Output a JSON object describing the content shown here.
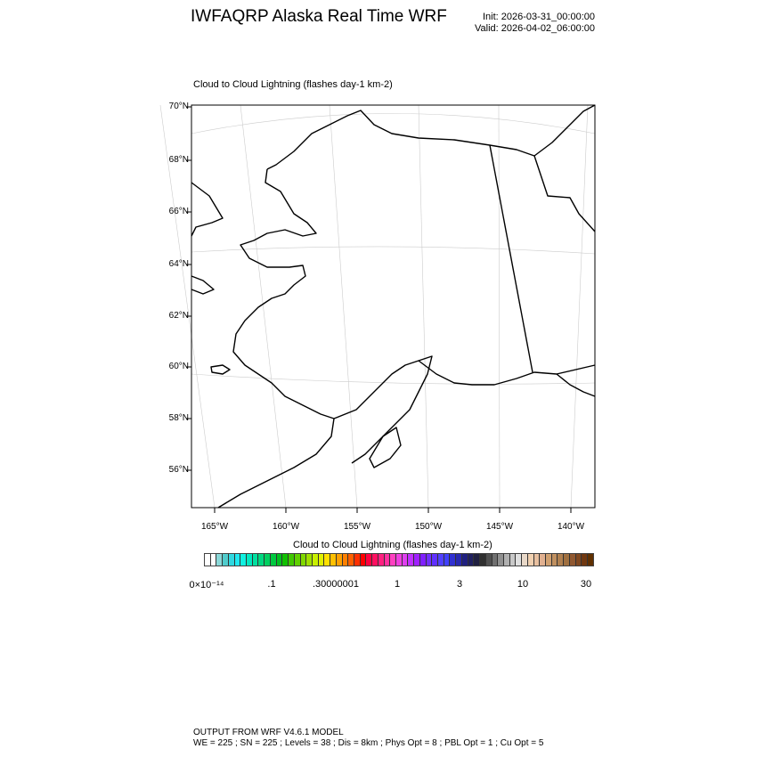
{
  "header": {
    "title": "IWFAQRP Alaska Real Time WRF",
    "init": "Init: 2026-03-31_00:00:00",
    "valid": "Valid: 2026-04-02_06:00:00"
  },
  "map": {
    "subtitle": "Cloud to Cloud Lightning   (flashes day-1 km-2)",
    "lat_labels": [
      "70°N",
      "68°N",
      "66°N",
      "64°N",
      "62°N",
      "60°N",
      "58°N",
      "56°N"
    ],
    "lon_labels": [
      "165°W",
      "160°W",
      "155°W",
      "150°W",
      "145°W",
      "140°W"
    ],
    "coast_color": "#000000",
    "grid_color": "#cccccc"
  },
  "colorbar": {
    "title": "Cloud to Cloud Lightning  (flashes day-1 km-2)",
    "labels": [
      "0×10⁻¹⁴",
      ".1",
      ".30000001",
      "1",
      "3",
      "10",
      "30"
    ],
    "colors": [
      "#ffffff",
      "#ffffff",
      "#8ad8d8",
      "#50cccc",
      "#30d8e0",
      "#20e8f0",
      "#10f0e0",
      "#00e8c0",
      "#00e0a0",
      "#00d880",
      "#00d060",
      "#00c840",
      "#00c020",
      "#10c000",
      "#40c800",
      "#60d000",
      "#80d800",
      "#a0e000",
      "#c8f000",
      "#e0f000",
      "#ffe000",
      "#ffc000",
      "#ffa000",
      "#ff8000",
      "#ff6000",
      "#ff3000",
      "#ff0000",
      "#ff0040",
      "#ff1060",
      "#ff2080",
      "#ff30a0",
      "#ff40c0",
      "#f040e0",
      "#e040f0",
      "#c030ff",
      "#a020ff",
      "#8020ff",
      "#7030ff",
      "#6030ff",
      "#5040ff",
      "#4040ff",
      "#3030d0",
      "#2828b0",
      "#202080",
      "#202060",
      "#202040",
      "#303030",
      "#505050",
      "#707070",
      "#909090",
      "#b0b0b0",
      "#c8c8c8",
      "#e0e0e0",
      "#e8d8c8",
      "#f0d0b0",
      "#e8c0a0",
      "#e0b090",
      "#d0a070",
      "#c09060",
      "#b08050",
      "#a07040",
      "#905830",
      "#804820",
      "#703810",
      "#603000"
    ]
  },
  "footer": {
    "line1": "OUTPUT FROM WRF V4.6.1 MODEL",
    "line2": "WE = 225 ; SN = 225 ; Levels = 38 ; Dis = 8km ; Phys Opt = 8 ; PBL Opt = 1 ; Cu Opt = 5"
  }
}
